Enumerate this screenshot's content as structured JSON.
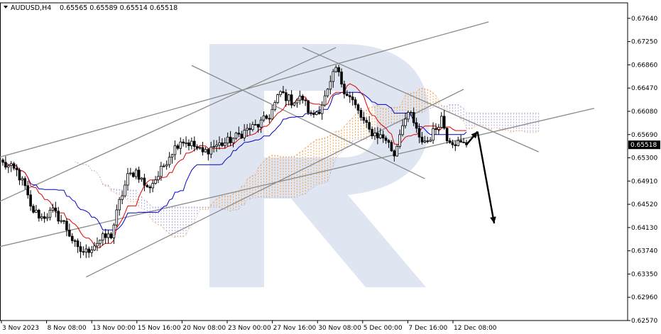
{
  "header": {
    "symbol": "AUDUSD,H4",
    "ohlc": "0.65565 0.65589 0.65514 0.65518"
  },
  "watermark": {
    "text": "R",
    "color": "#dfe6f1"
  },
  "colors": {
    "candle": "#000000",
    "bull_body": "#ffffff",
    "bear_body": "#000000",
    "tenkan": "#dd0000",
    "kijun": "#0000cc",
    "cloud_bull": "#f0a050",
    "cloud_bear": "#b0a8d8",
    "trendline": "#8a8a8a",
    "arrow": "#000000",
    "price_tag_bg": "#000000",
    "price_tag_text": "#ffffff"
  },
  "chart_data": {
    "type": "candlestick",
    "timeframe": "H4",
    "ylim": [
      0.6257,
      0.679
    ],
    "y_ticks": [
      "0.67640",
      "0.67250",
      "0.66860",
      "0.66470",
      "0.66080",
      "0.65690",
      "0.65300",
      "0.64910",
      "0.64520",
      "0.64130",
      "0.63740",
      "0.63350",
      "0.62960",
      "0.62570"
    ],
    "x_ticks": [
      "3 Nov 2023",
      "8 Nov 08:00",
      "13 Nov 00:00",
      "15 Nov 16:00",
      "20 Nov 08:00",
      "23 Nov 00:00",
      "27 Nov 16:00",
      "30 Nov 08:00",
      "5 Dec 00:00",
      "7 Dec 16:00",
      "12 Dec 08:00"
    ],
    "last_price": "0.65518",
    "anchors": [
      {
        "i": 0,
        "p": 0.652
      },
      {
        "i": 5,
        "p": 0.6507
      },
      {
        "i": 8,
        "p": 0.648
      },
      {
        "i": 10,
        "p": 0.6445
      },
      {
        "i": 14,
        "p": 0.643
      },
      {
        "i": 18,
        "p": 0.644
      },
      {
        "i": 22,
        "p": 0.642
      },
      {
        "i": 27,
        "p": 0.6375
      },
      {
        "i": 30,
        "p": 0.6372
      },
      {
        "i": 33,
        "p": 0.6385
      },
      {
        "i": 36,
        "p": 0.6395
      },
      {
        "i": 39,
        "p": 0.64
      },
      {
        "i": 42,
        "p": 0.6455
      },
      {
        "i": 45,
        "p": 0.6498
      },
      {
        "i": 48,
        "p": 0.6508
      },
      {
        "i": 52,
        "p": 0.6478
      },
      {
        "i": 56,
        "p": 0.65
      },
      {
        "i": 60,
        "p": 0.6535
      },
      {
        "i": 64,
        "p": 0.656
      },
      {
        "i": 68,
        "p": 0.6553
      },
      {
        "i": 72,
        "p": 0.6538
      },
      {
        "i": 76,
        "p": 0.655
      },
      {
        "i": 80,
        "p": 0.6555
      },
      {
        "i": 84,
        "p": 0.6565
      },
      {
        "i": 88,
        "p": 0.6577
      },
      {
        "i": 92,
        "p": 0.6585
      },
      {
        "i": 96,
        "p": 0.66
      },
      {
        "i": 100,
        "p": 0.664
      },
      {
        "i": 104,
        "p": 0.6625
      },
      {
        "i": 108,
        "p": 0.663
      },
      {
        "i": 111,
        "p": 0.66
      },
      {
        "i": 114,
        "p": 0.6612
      },
      {
        "i": 117,
        "p": 0.664
      },
      {
        "i": 120,
        "p": 0.668
      },
      {
        "i": 123,
        "p": 0.6645
      },
      {
        "i": 126,
        "p": 0.6625
      },
      {
        "i": 129,
        "p": 0.6598
      },
      {
        "i": 132,
        "p": 0.6575
      },
      {
        "i": 135,
        "p": 0.6568
      },
      {
        "i": 138,
        "p": 0.6562
      },
      {
        "i": 141,
        "p": 0.6535
      },
      {
        "i": 144,
        "p": 0.659
      },
      {
        "i": 147,
        "p": 0.6603
      },
      {
        "i": 150,
        "p": 0.656
      },
      {
        "i": 153,
        "p": 0.6558
      },
      {
        "i": 156,
        "p": 0.658
      },
      {
        "i": 158,
        "p": 0.6598
      },
      {
        "i": 160,
        "p": 0.6565
      },
      {
        "i": 162,
        "p": 0.6558
      },
      {
        "i": 165,
        "p": 0.6553
      },
      {
        "i": 167,
        "p": 0.65518
      }
    ],
    "trendlines": [
      {
        "i1": -2,
        "p1": 0.653,
        "i2": 175,
        "p2": 0.6758
      },
      {
        "i1": -2,
        "p1": 0.6455,
        "i2": 120,
        "p2": 0.6715
      },
      {
        "i1": -2,
        "p1": 0.638,
        "i2": 213,
        "p2": 0.6613
      },
      {
        "i1": 30,
        "p1": 0.633,
        "i2": 166,
        "p2": 0.6645
      },
      {
        "i1": 68,
        "p1": 0.6685,
        "i2": 152,
        "p2": 0.6495
      },
      {
        "i1": 108,
        "p1": 0.6715,
        "i2": 193,
        "p2": 0.654
      }
    ],
    "forecast_arrow": [
      {
        "i": 167,
        "p": 0.6552
      },
      {
        "i": 171,
        "p": 0.6574
      },
      {
        "i": 177,
        "p": 0.642
      }
    ]
  }
}
